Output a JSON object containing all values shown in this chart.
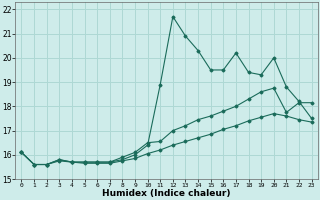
{
  "background_color": "#ceecea",
  "grid_color": "#aed8d4",
  "line_color": "#1a6b5a",
  "xlabel": "Humidex (Indice chaleur)",
  "xlim": [
    -0.5,
    23.5
  ],
  "ylim": [
    15,
    22.3
  ],
  "yticks": [
    15,
    16,
    17,
    18,
    19,
    20,
    21,
    22
  ],
  "xticks": [
    0,
    1,
    2,
    3,
    4,
    5,
    6,
    7,
    8,
    9,
    10,
    11,
    12,
    13,
    14,
    15,
    16,
    17,
    18,
    19,
    20,
    21,
    22,
    23
  ],
  "series": [
    {
      "x": [
        0,
        1,
        2,
        3,
        4,
        5,
        6,
        7,
        8,
        9,
        10,
        11,
        12,
        13,
        14,
        15,
        16,
        17,
        18,
        19,
        20,
        21,
        22,
        23
      ],
      "y": [
        16.1,
        15.6,
        15.6,
        15.8,
        15.7,
        15.7,
        15.7,
        15.7,
        15.8,
        16.0,
        16.4,
        18.9,
        21.7,
        20.9,
        20.3,
        19.5,
        19.5,
        20.2,
        19.4,
        19.3,
        20.0,
        18.8,
        18.2,
        17.5
      ]
    },
    {
      "x": [
        0,
        1,
        2,
        3,
        4,
        5,
        6,
        7,
        8,
        9,
        10,
        11,
        12,
        13,
        14,
        15,
        16,
        17,
        18,
        19,
        20,
        21,
        22,
        23
      ],
      "y": [
        16.1,
        15.6,
        15.6,
        15.8,
        15.7,
        15.7,
        15.7,
        15.7,
        15.9,
        16.1,
        16.5,
        16.55,
        17.0,
        17.2,
        17.45,
        17.6,
        17.8,
        18.0,
        18.3,
        18.6,
        18.75,
        17.75,
        18.15,
        18.15
      ]
    },
    {
      "x": [
        0,
        1,
        2,
        3,
        4,
        5,
        6,
        7,
        8,
        9,
        10,
        11,
        12,
        13,
        14,
        15,
        16,
        17,
        18,
        19,
        20,
        21,
        22,
        23
      ],
      "y": [
        16.1,
        15.6,
        15.6,
        15.75,
        15.7,
        15.65,
        15.65,
        15.65,
        15.75,
        15.85,
        16.05,
        16.2,
        16.4,
        16.55,
        16.7,
        16.85,
        17.05,
        17.2,
        17.4,
        17.55,
        17.7,
        17.6,
        17.45,
        17.35
      ]
    }
  ]
}
